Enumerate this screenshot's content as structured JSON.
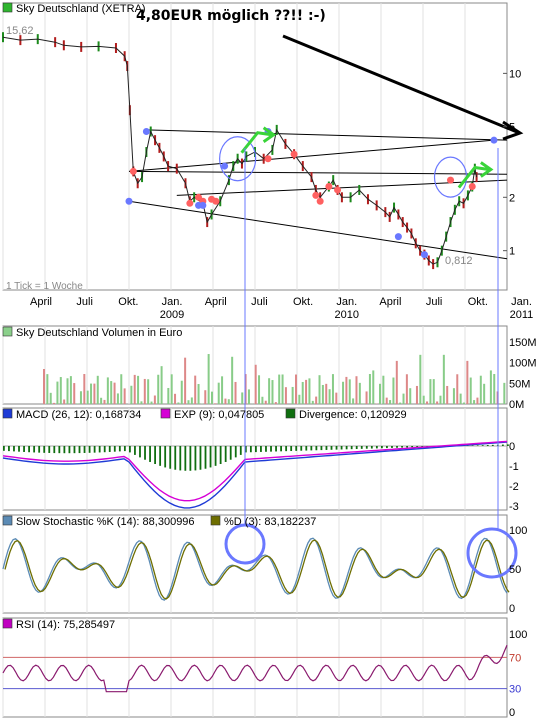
{
  "chart_data": {
    "type": "line",
    "panels": {
      "price": {
        "title": "Sky Deutschland (XETRA)",
        "legend_color": "#2fb52f",
        "axis": "log",
        "y_ticks": [
          1,
          2,
          5,
          10
        ],
        "max_label": "15,62",
        "min_label": "0,812",
        "tick_note": "1 Tick = 1 Woche",
        "annotation": "4,80EUR möglich ??!! :-)",
        "series": [
          [
            0,
            16
          ],
          [
            4,
            15.4
          ],
          [
            8,
            15.6
          ],
          [
            12,
            15.0
          ],
          [
            14,
            14.4
          ],
          [
            18,
            14.1
          ],
          [
            22,
            14.2
          ],
          [
            26,
            13.9
          ],
          [
            28,
            12.5
          ],
          [
            28.6,
            11.0
          ],
          [
            29.2,
            6.2
          ],
          [
            30,
            2.8
          ],
          [
            31,
            2.4
          ],
          [
            32,
            2.6
          ],
          [
            33,
            3.6
          ],
          [
            34,
            4.7
          ],
          [
            35,
            4.2
          ],
          [
            36,
            3.8
          ],
          [
            37,
            3.4
          ],
          [
            38,
            3.0
          ],
          [
            40,
            2.9
          ],
          [
            42,
            2.4
          ],
          [
            43,
            1.9
          ],
          [
            44,
            2.0
          ],
          [
            46,
            1.85
          ],
          [
            47,
            1.45
          ],
          [
            48,
            1.6
          ],
          [
            50,
            1.9
          ],
          [
            52,
            2.5
          ],
          [
            53,
            3.0
          ],
          [
            54,
            3.3
          ],
          [
            55,
            3.1
          ],
          [
            56,
            3.4
          ],
          [
            58,
            3.6
          ],
          [
            60,
            3.3
          ],
          [
            62,
            3.7
          ],
          [
            63,
            4.8
          ],
          [
            65,
            4.0
          ],
          [
            67,
            3.5
          ],
          [
            69,
            3.0
          ],
          [
            71,
            2.6
          ],
          [
            72,
            2.2
          ],
          [
            73,
            2.0
          ],
          [
            75,
            2.3
          ],
          [
            76,
            2.5
          ],
          [
            77,
            2.2
          ],
          [
            78,
            2.0
          ],
          [
            80,
            2.0
          ],
          [
            82,
            2.2
          ],
          [
            84,
            1.95
          ],
          [
            86,
            1.8
          ],
          [
            88,
            1.65
          ],
          [
            89,
            1.55
          ],
          [
            90,
            1.75
          ],
          [
            91,
            1.6
          ],
          [
            92,
            1.45
          ],
          [
            93,
            1.35
          ],
          [
            94,
            1.25
          ],
          [
            95,
            1.1
          ],
          [
            96,
            1.0
          ],
          [
            97,
            0.95
          ],
          [
            98,
            0.88
          ],
          [
            99,
            0.84
          ],
          [
            100,
            0.86
          ],
          [
            101,
            1.0
          ],
          [
            102,
            1.2
          ],
          [
            103,
            1.45
          ],
          [
            104,
            1.7
          ],
          [
            105,
            1.9
          ],
          [
            106,
            1.85
          ],
          [
            107,
            2.05
          ],
          [
            108,
            2.3
          ],
          [
            108.6,
            2.9
          ],
          [
            109,
            2.6
          ]
        ],
        "markers_red": [
          [
            30,
            2.8
          ],
          [
            43,
            1.85
          ],
          [
            45,
            2.0
          ],
          [
            46,
            1.9
          ],
          [
            48,
            1.95
          ],
          [
            49,
            1.9
          ],
          [
            61,
            3.3
          ],
          [
            67,
            3.5
          ],
          [
            72,
            2.05
          ],
          [
            73,
            1.9
          ],
          [
            75,
            2.3
          ],
          [
            77,
            2.2
          ],
          [
            103,
            2.5
          ],
          [
            108,
            2.3
          ]
        ],
        "markers_blue": [
          [
            29,
            1.9
          ],
          [
            33,
            4.7
          ],
          [
            45,
            1.8
          ],
          [
            46,
            1.8
          ],
          [
            51,
            3.0
          ],
          [
            61,
            4.7
          ],
          [
            91,
            1.2
          ],
          [
            97,
            0.95
          ],
          [
            113,
            4.2
          ]
        ],
        "trendlines": [
          {
            "from": [
              29,
              2.8
            ],
            "to": [
              113,
              4.2
            ]
          },
          {
            "from": [
              33,
              4.8
            ],
            "to": [
              116,
              4.2
            ]
          },
          {
            "from": [
              29,
              1.9
            ],
            "to": [
              116,
              0.9
            ]
          },
          {
            "from": [
              40,
              2.05
            ],
            "to": [
              116,
              2.5
            ]
          },
          {
            "from": [
              29,
              2.8
            ],
            "to": [
              116,
              2.7
            ]
          }
        ],
        "green_arrows": [
          [
            54,
            3.3
          ],
          [
            104,
            2.1
          ]
        ]
      },
      "volume": {
        "title": "Sky Deutschland Volumen in Euro",
        "legend_color": "#8bd08b",
        "y_ticks": [
          "0M",
          "50M",
          "100M",
          "150M"
        ]
      },
      "macd": {
        "legend": [
          {
            "label": "MACD (26, 12): 0,168734",
            "color": "#1f3bd6"
          },
          {
            "label": "EXP (9): 0,047805",
            "color": "#d600d6"
          },
          {
            "label": "Divergence: 0,120929",
            "color": "#0f6e0f"
          }
        ],
        "y_ticks": [
          "0",
          "-1",
          "-2",
          "-3"
        ]
      },
      "stochastic": {
        "legend": [
          {
            "label": "Slow Stochastic %K (14): 88,300996",
            "color": "#5b8bb5"
          },
          {
            "label": "%D (3): 83,182237",
            "color": "#6e6e00"
          }
        ],
        "y_ticks": [
          "100",
          "50",
          "0"
        ]
      },
      "rsi": {
        "legend": [
          {
            "label": "RSI (14): 75,285497",
            "color": "#c000c0"
          }
        ],
        "y_ticks": [
          "100",
          "70",
          "30",
          "0"
        ]
      }
    },
    "x_axis": {
      "ticks": [
        {
          "label": "April",
          "week": 11
        },
        {
          "label": "Juli",
          "week": 24
        },
        {
          "label": "Okt.",
          "week": 37
        },
        {
          "label": "Jan.",
          "week": 50
        },
        {
          "label": "April",
          "week": 63
        },
        {
          "label": "Juli",
          "week": 76
        },
        {
          "label": "Okt.",
          "week": 89
        },
        {
          "label": "Jan.",
          "week": 102
        },
        {
          "label": "April",
          "week": 115
        },
        {
          "label": "Juli",
          "week": 128
        },
        {
          "label": "Okt.",
          "week": 141
        },
        {
          "label": "Jan.",
          "week": 154
        }
      ],
      "years": [
        {
          "label": "2009",
          "week": 50
        },
        {
          "label": "2010",
          "week": 102
        },
        {
          "label": "2011",
          "week": 154
        }
      ]
    }
  }
}
